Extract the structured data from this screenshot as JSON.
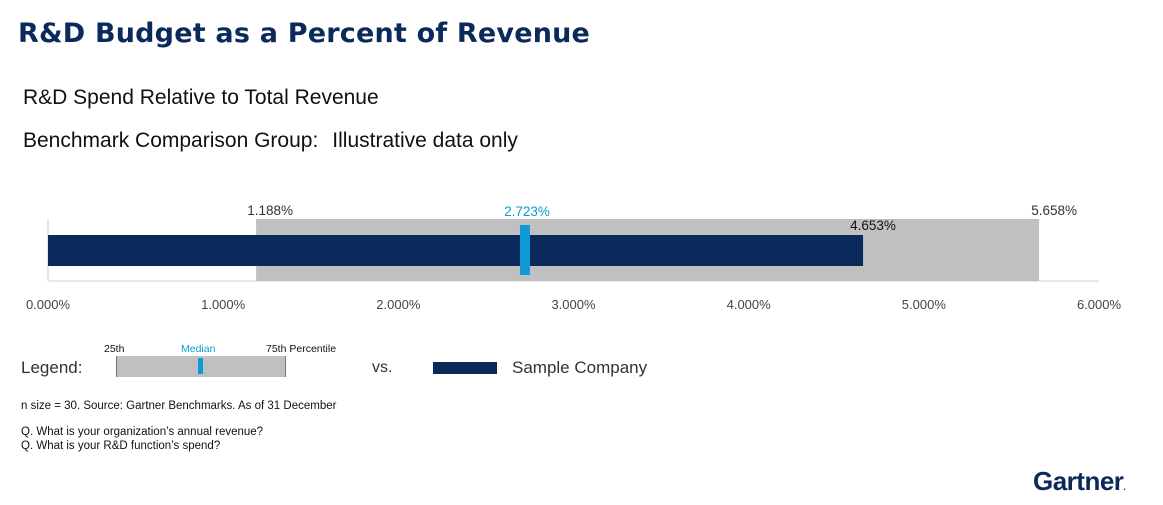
{
  "page": {
    "title": "R&D Budget as a Percent of Revenue",
    "subtitle": "R&D Spend Relative to Total Revenue",
    "benchmark_label": "Benchmark Comparison Group:",
    "benchmark_value": "Illustrative data only"
  },
  "chart_data": {
    "type": "bar",
    "orientation": "horizontal",
    "title": "",
    "xlabel": "",
    "ylabel": "",
    "xlim": [
      0,
      6
    ],
    "x_ticks": [
      0,
      1,
      2,
      3,
      4,
      5,
      6
    ],
    "x_tick_labels": [
      "0.000%",
      "1.000%",
      "2.000%",
      "3.000%",
      "4.000%",
      "5.000%",
      "6.000%"
    ],
    "grid": false,
    "percentile_25": 1.188,
    "median": 2.723,
    "percentile_75": 5.658,
    "sample_company": 4.653,
    "labels": {
      "percentile_25": "1.188%",
      "median": "2.723%",
      "percentile_75": "5.658%",
      "sample_company": "4.653%"
    },
    "colors": {
      "range": "#c0c0c0",
      "median": "#0f9bd7",
      "sample": "#0b2a5b",
      "axis": "#d0d0d0"
    }
  },
  "legend": {
    "label": "Legend:",
    "p25": "25th",
    "median": "Median",
    "p75": "75th Percentile",
    "vs": "vs.",
    "sample": "Sample Company"
  },
  "footnotes": {
    "source": "n size = 30. Source: Gartner Benchmarks. As of 31 December",
    "q1": "Q. What is your organization’s annual revenue?",
    "q2": "Q. What is your R&D function’s spend?"
  },
  "logo": {
    "text": "Gartner",
    "mark": "."
  }
}
